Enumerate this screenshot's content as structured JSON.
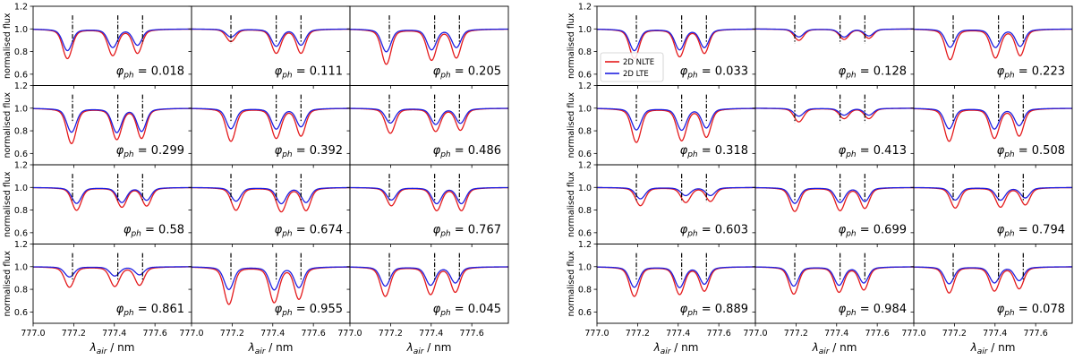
{
  "chart_data": [
    {
      "type": "line",
      "description_grid": "4 rows x 3 columns of small multiples",
      "ylabel": "normalised flux",
      "xlabel_symbol": "λ",
      "xlabel_sub": "air",
      "xlabel_unit": " / nm",
      "xlim": [
        777.0,
        777.78
      ],
      "ylim": [
        0.5,
        1.2
      ],
      "xticks": [
        "777.0",
        "777.2",
        "777.4",
        "777.6"
      ],
      "xtick_values": [
        777.0,
        777.2,
        777.4,
        777.6
      ],
      "yticks": [
        "0.6",
        "0.8",
        "1.0",
        "1.2"
      ],
      "ytick_values": [
        0.6,
        0.8,
        1.0,
        1.2
      ],
      "line_positions": [
        777.194,
        777.417,
        777.539
      ],
      "series": [
        {
          "name": "2D NLTE",
          "color": "#e41a1c"
        },
        {
          "name": "2D LTE",
          "color": "#1f1fe0"
        }
      ],
      "legend": null,
      "panels": [
        {
          "phase": "0.018",
          "shift": -0.025,
          "nlte": [
            0.74,
            0.77,
            0.79
          ],
          "lte": [
            0.81,
            0.84,
            0.86
          ]
        },
        {
          "phase": "0.111",
          "shift": 0.0,
          "nlte": [
            0.89,
            0.79,
            0.79
          ],
          "lte": [
            0.93,
            0.85,
            0.86
          ]
        },
        {
          "phase": "0.205",
          "shift": -0.015,
          "nlte": [
            0.69,
            0.73,
            0.75
          ],
          "lte": [
            0.8,
            0.82,
            0.84
          ]
        },
        {
          "phase": "0.299",
          "shift": -0.005,
          "nlte": [
            0.69,
            0.73,
            0.74
          ],
          "lte": [
            0.79,
            0.79,
            0.8
          ]
        },
        {
          "phase": "0.392",
          "shift": 0.0,
          "nlte": [
            0.71,
            0.74,
            0.76
          ],
          "lte": [
            0.82,
            0.82,
            0.84
          ]
        },
        {
          "phase": "0.486",
          "shift": 0.005,
          "nlte": [
            0.78,
            0.8,
            0.81
          ],
          "lte": [
            0.87,
            0.86,
            0.87
          ]
        },
        {
          "phase": "0.58",
          "shift": 0.02,
          "nlte": [
            0.8,
            0.83,
            0.84
          ],
          "lte": [
            0.86,
            0.87,
            0.89
          ]
        },
        {
          "phase": "0.674",
          "shift": 0.025,
          "nlte": [
            0.8,
            0.79,
            0.8
          ],
          "lte": [
            0.88,
            0.86,
            0.87
          ]
        },
        {
          "phase": "0.767",
          "shift": 0.01,
          "nlte": [
            0.84,
            0.8,
            0.8
          ],
          "lte": [
            0.89,
            0.86,
            0.86
          ]
        },
        {
          "phase": "0.861",
          "shift": -0.015,
          "nlte": [
            0.82,
            0.83,
            0.84
          ],
          "lte": [
            0.91,
            0.92,
            0.93
          ]
        },
        {
          "phase": "0.955",
          "shift": -0.01,
          "nlte": [
            0.67,
            0.69,
            0.72
          ],
          "lte": [
            0.8,
            0.8,
            0.82
          ]
        },
        {
          "phase": "0.045",
          "shift": -0.02,
          "nlte": [
            0.74,
            0.76,
            0.78
          ],
          "lte": [
            0.83,
            0.84,
            0.86
          ]
        }
      ]
    },
    {
      "type": "line",
      "description_grid": "4 rows x 3 columns of small multiples",
      "ylabel": "normalised flux",
      "xlabel_symbol": "λ",
      "xlabel_sub": "air",
      "xlabel_unit": " / nm",
      "xlim": [
        777.0,
        777.78
      ],
      "ylim": [
        0.5,
        1.2
      ],
      "xticks": [
        "777.0",
        "777.2",
        "777.4",
        "777.6"
      ],
      "xtick_values": [
        777.0,
        777.2,
        777.4,
        777.6
      ],
      "yticks": [
        "0.6",
        "0.8",
        "1.0",
        "1.2"
      ],
      "ytick_values": [
        0.6,
        0.8,
        1.0,
        1.2
      ],
      "line_positions": [
        777.194,
        777.417,
        777.539
      ],
      "series": [
        {
          "name": "2D NLTE",
          "color": "#e41a1c"
        },
        {
          "name": "2D LTE",
          "color": "#1f1fe0"
        }
      ],
      "legend": {
        "position": "upper-left of first panel",
        "entries": [
          "2D NLTE",
          "2D LTE"
        ]
      },
      "panels": [
        {
          "phase": "0.033",
          "shift": -0.01,
          "nlte": [
            0.74,
            0.76,
            0.79
          ],
          "lte": [
            0.81,
            0.82,
            0.84
          ]
        },
        {
          "phase": "0.128",
          "shift": 0.02,
          "nlte": [
            0.9,
            0.91,
            0.92
          ],
          "lte": [
            0.93,
            0.93,
            0.94
          ]
        },
        {
          "phase": "0.223",
          "shift": -0.015,
          "nlte": [
            0.73,
            0.75,
            0.77
          ],
          "lte": [
            0.84,
            0.84,
            0.85
          ]
        },
        {
          "phase": "0.318",
          "shift": 0.0,
          "nlte": [
            0.7,
            0.72,
            0.75
          ],
          "lte": [
            0.81,
            0.81,
            0.83
          ]
        },
        {
          "phase": "0.413",
          "shift": 0.02,
          "nlte": [
            0.88,
            0.91,
            0.91
          ],
          "lte": [
            0.93,
            0.94,
            0.94
          ]
        },
        {
          "phase": "0.508",
          "shift": -0.02,
          "nlte": [
            0.71,
            0.74,
            0.76
          ],
          "lte": [
            0.82,
            0.82,
            0.85
          ]
        },
        {
          "phase": "0.603",
          "shift": 0.02,
          "nlte": [
            0.84,
            0.87,
            0.88
          ],
          "lte": [
            0.9,
            0.93,
            0.93
          ]
        },
        {
          "phase": "0.699",
          "shift": 0.0,
          "nlte": [
            0.79,
            0.8,
            0.82
          ],
          "lte": [
            0.86,
            0.87,
            0.88
          ]
        },
        {
          "phase": "0.794",
          "shift": 0.01,
          "nlte": [
            0.82,
            0.83,
            0.85
          ],
          "lte": [
            0.89,
            0.89,
            0.91
          ]
        },
        {
          "phase": "0.889",
          "shift": -0.01,
          "nlte": [
            0.74,
            0.76,
            0.79
          ],
          "lte": [
            0.82,
            0.82,
            0.85
          ]
        },
        {
          "phase": "0.984",
          "shift": -0.005,
          "nlte": [
            0.76,
            0.78,
            0.8
          ],
          "lte": [
            0.83,
            0.84,
            0.86
          ]
        },
        {
          "phase": "0.078",
          "shift": -0.02,
          "nlte": [
            0.77,
            0.79,
            0.81
          ],
          "lte": [
            0.85,
            0.86,
            0.88
          ]
        }
      ]
    }
  ]
}
